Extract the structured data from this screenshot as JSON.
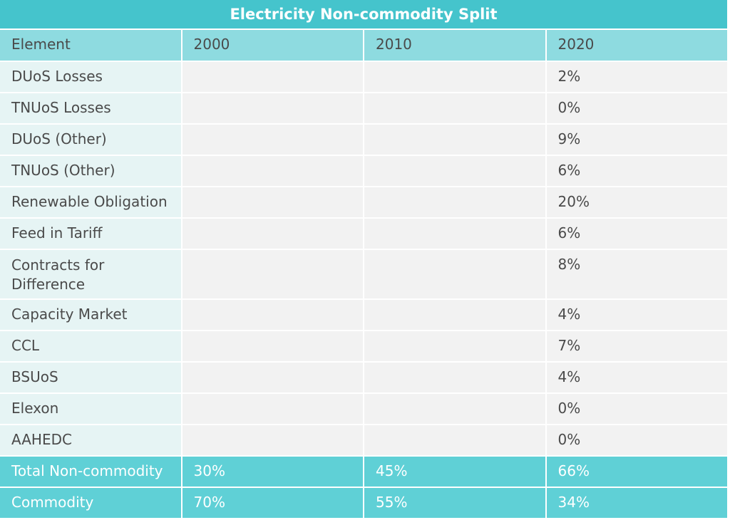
{
  "table": {
    "title": "Electricity Non-commodity Split",
    "header": [
      "Element",
      "2000",
      "2010",
      "2020"
    ],
    "rows": [
      [
        "DUoS Losses",
        null,
        null,
        "2%"
      ],
      [
        "TNUoS Losses",
        null,
        null,
        "0%"
      ],
      [
        "DUoS (Other)",
        null,
        null,
        "9%"
      ],
      [
        "TNUoS (Other)",
        null,
        null,
        "6%"
      ],
      [
        "Renewable Obligation",
        null,
        null,
        "20%"
      ],
      [
        "Feed in Tariff",
        null,
        null,
        "6%"
      ],
      [
        "Contracts for Difference",
        null,
        null,
        "8%"
      ],
      [
        "Capacity Market",
        null,
        null,
        "4%"
      ],
      [
        "CCL",
        null,
        null,
        "7%"
      ],
      [
        "BSUoS",
        null,
        null,
        "4%"
      ],
      [
        "Elexon",
        null,
        null,
        "0%"
      ],
      [
        "AAHEDC",
        null,
        null,
        "0%"
      ]
    ],
    "totals": [
      [
        "Total Non-commodity",
        "30%",
        "45%",
        "66%"
      ],
      [
        "Commodity",
        "70%",
        "55%",
        "34%"
      ]
    ]
  }
}
